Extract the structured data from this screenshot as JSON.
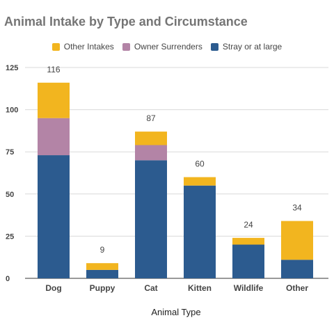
{
  "chart_data": {
    "type": "bar",
    "stacked": true,
    "title": "Animal Intake by Type and Circumstance",
    "xlabel": "Animal Type",
    "ylabel": "",
    "categories": [
      "Dog",
      "Puppy",
      "Cat",
      "Kitten",
      "Wildlife",
      "Other"
    ],
    "series": [
      {
        "name": "Stray or at large",
        "color": "#2c5b8f",
        "values": [
          73,
          5,
          70,
          55,
          20,
          11
        ]
      },
      {
        "name": "Owner Surrenders",
        "color": "#b384a6",
        "values": [
          22,
          0,
          9,
          0,
          0,
          0
        ]
      },
      {
        "name": "Other Intakes",
        "color": "#f2b51f",
        "values": [
          21,
          4,
          8,
          5,
          4,
          23
        ]
      }
    ],
    "legend_order": [
      "Other Intakes",
      "Owner Surrenders",
      "Stray or at large"
    ],
    "totals": [
      116,
      9,
      87,
      60,
      24,
      34
    ],
    "ylim": [
      0,
      125
    ],
    "yticks": [
      0,
      25,
      50,
      75,
      100,
      125
    ],
    "grid": true,
    "legend_position": "top-center"
  }
}
